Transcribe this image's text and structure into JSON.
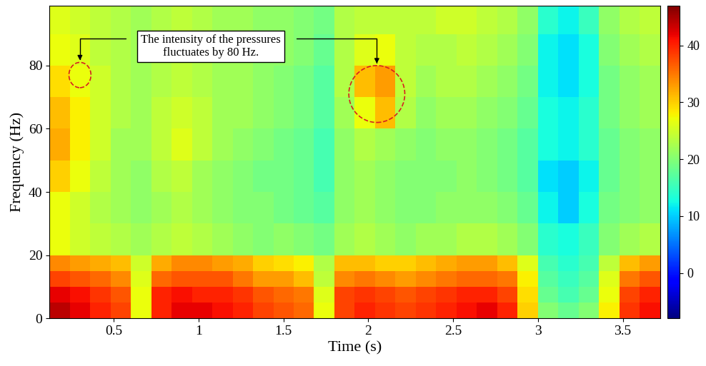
{
  "chart_data": {
    "type": "heatmap",
    "x_label": "Time (s)",
    "y_label": "Frequency (Hz)",
    "xlim": [
      0.12,
      3.72
    ],
    "xticks": [
      0.5,
      1,
      1.5,
      2,
      2.5,
      3,
      3.5
    ],
    "ylim": [
      0,
      99
    ],
    "yticks": [
      0,
      20,
      40,
      60,
      80
    ],
    "time_edges": [
      0.12,
      0.24,
      0.36,
      0.48,
      0.6,
      0.72,
      0.84,
      0.96,
      1.08,
      1.2,
      1.32,
      1.44,
      1.56,
      1.68,
      1.8,
      1.92,
      2.04,
      2.16,
      2.28,
      2.4,
      2.52,
      2.64,
      2.76,
      2.88,
      3.0,
      3.12,
      3.24,
      3.36,
      3.48,
      3.6,
      3.72
    ],
    "frequency_edges": [
      0,
      5,
      10,
      15,
      20,
      30,
      40,
      50,
      60,
      70,
      80,
      90,
      99
    ],
    "cells": [
      [
        44,
        42,
        40,
        38,
        27,
        40,
        42,
        42,
        41,
        40,
        38,
        37,
        36,
        27,
        38,
        40,
        39,
        38,
        39,
        40,
        41,
        42,
        40,
        30,
        20,
        18,
        20,
        28,
        39,
        41
      ],
      [
        42,
        41,
        39,
        37,
        27,
        40,
        41,
        40,
        40,
        39,
        37,
        36,
        35,
        26,
        38,
        39,
        38,
        37,
        38,
        39,
        40,
        40,
        38,
        29,
        18,
        16,
        18,
        27,
        38,
        40
      ],
      [
        38,
        37,
        36,
        34,
        26,
        36,
        37,
        37,
        37,
        35,
        33,
        33,
        31,
        24,
        34,
        35,
        34,
        33,
        34,
        35,
        36,
        36,
        35,
        28,
        17,
        15,
        17,
        26,
        35,
        37
      ],
      [
        34,
        33,
        32,
        31,
        25,
        32,
        34,
        34,
        33,
        32,
        30,
        29,
        28,
        23,
        31,
        31,
        30,
        30,
        31,
        32,
        33,
        33,
        31,
        26,
        16,
        14,
        16,
        24,
        31,
        33
      ],
      [
        27,
        25,
        24,
        23,
        22,
        23,
        24,
        23,
        22,
        21,
        20,
        21,
        20,
        19,
        22,
        23,
        22,
        21,
        22,
        22,
        23,
        23,
        22,
        20,
        14,
        13,
        15,
        20,
        22,
        23
      ],
      [
        27,
        25,
        23,
        22,
        21,
        22,
        23,
        22,
        21,
        20,
        20,
        19,
        18,
        17,
        21,
        22,
        21,
        20,
        20,
        21,
        21,
        21,
        20,
        18,
        12,
        10,
        13,
        19,
        20,
        21
      ],
      [
        30,
        27,
        24,
        22,
        21,
        23,
        24,
        22,
        21,
        20,
        19,
        19,
        18,
        16,
        21,
        22,
        21,
        20,
        20,
        20,
        21,
        20,
        19,
        17,
        11,
        10,
        12,
        18,
        20,
        21
      ],
      [
        32,
        28,
        25,
        22,
        22,
        24,
        26,
        24,
        22,
        21,
        20,
        19,
        18,
        16,
        21,
        23,
        22,
        21,
        20,
        21,
        21,
        20,
        19,
        17,
        13,
        12,
        14,
        18,
        20,
        21
      ],
      [
        31,
        28,
        25,
        23,
        22,
        24,
        25,
        24,
        22,
        22,
        21,
        20,
        19,
        17,
        22,
        27,
        31,
        23,
        21,
        22,
        22,
        21,
        20,
        18,
        13,
        12,
        14,
        19,
        21,
        22
      ],
      [
        29,
        27,
        25,
        23,
        22,
        23,
        24,
        23,
        22,
        22,
        21,
        20,
        19,
        17,
        23,
        31,
        33,
        24,
        22,
        23,
        23,
        22,
        21,
        19,
        12,
        11,
        13,
        19,
        21,
        22
      ],
      [
        27,
        26,
        24,
        23,
        22,
        23,
        24,
        23,
        22,
        22,
        21,
        21,
        20,
        18,
        23,
        26,
        27,
        24,
        23,
        23,
        24,
        23,
        22,
        20,
        12,
        11,
        13,
        20,
        22,
        23
      ],
      [
        26,
        25,
        24,
        23,
        22,
        23,
        24,
        23,
        22,
        22,
        21,
        21,
        20,
        19,
        23,
        24,
        24,
        24,
        24,
        25,
        25,
        24,
        23,
        21,
        14,
        12,
        15,
        21,
        23,
        24
      ]
    ],
    "color_range": [
      -8,
      47
    ],
    "color_ticks": [
      0,
      10,
      20,
      30,
      40
    ],
    "annotation": {
      "text": "The intensity of the pressures\nfluctuates by 80 Hz.",
      "points": [
        [
          0.3,
          77
        ],
        [
          2.05,
          71
        ]
      ]
    }
  }
}
